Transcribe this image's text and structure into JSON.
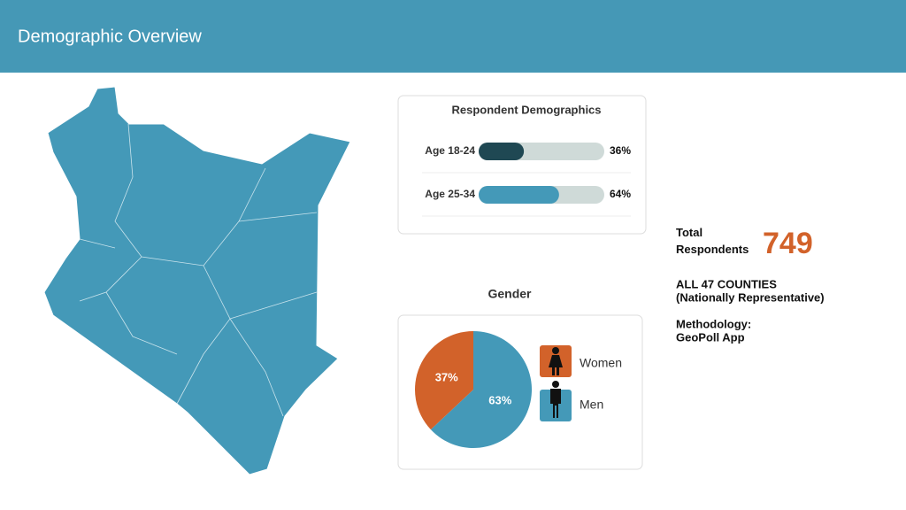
{
  "header": {
    "title": "Demographic Overview"
  },
  "chart_data": [
    {
      "type": "bar",
      "title": "Respondent Demographics",
      "categories": [
        "Age 18-24",
        "Age 25-34"
      ],
      "values": [
        36,
        64
      ],
      "value_labels": [
        "36%",
        "64%"
      ],
      "colors": [
        "#1f4853",
        "#4499b8"
      ],
      "track_color": "#cfdad8",
      "xlim": [
        0,
        100
      ]
    },
    {
      "type": "pie",
      "title": "Gender",
      "categories": [
        "Women",
        "Men"
      ],
      "values": [
        37,
        63
      ],
      "value_labels": [
        "37%",
        "63%"
      ],
      "colors": [
        "#d2622a",
        "#4499b8"
      ]
    }
  ],
  "stats": {
    "total_label": "Total Respondents",
    "total_value": 749,
    "coverage": "ALL 47 COUNTIES",
    "coverage_note": "(Nationally Representative)",
    "methodology_label": "Methodology:",
    "methodology": "GeoPoll App"
  }
}
